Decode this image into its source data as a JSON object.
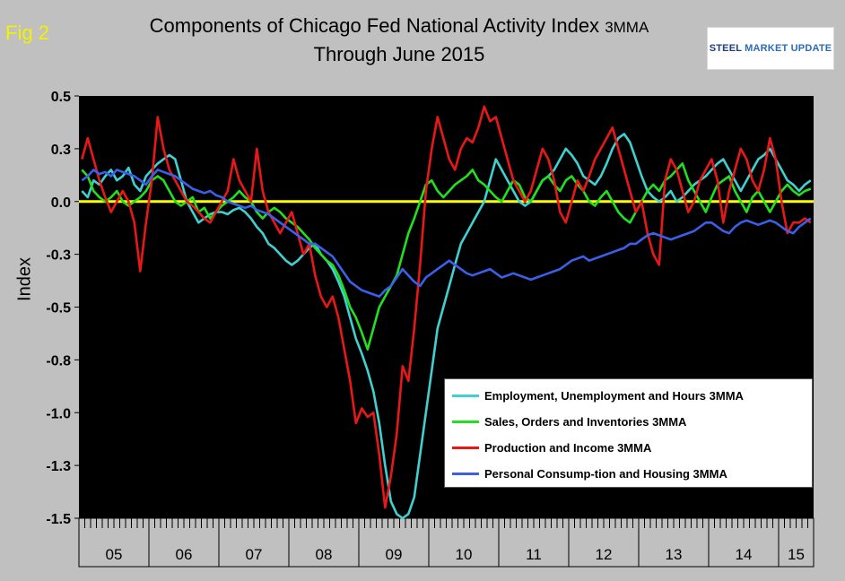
{
  "fig_label": "Fig 2",
  "title": {
    "line1_main": "Components of Chicago Fed National Activity Index",
    "line1_small": "3MMA",
    "line2": "Through June 2015"
  },
  "logo": {
    "part1": "STEEL",
    "part2": "MARKET UPDATE"
  },
  "chart_data": {
    "type": "line",
    "ylabel": "Index",
    "ylim": [
      -1.5,
      0.5
    ],
    "yticks": [
      {
        "value": 0.5,
        "label": "0.5"
      },
      {
        "value": 0.25,
        "label": "0.3"
      },
      {
        "value": 0.0,
        "label": "0.0"
      },
      {
        "value": -0.25,
        "label": "-0.3"
      },
      {
        "value": -0.5,
        "label": "-0.5"
      },
      {
        "value": -0.75,
        "label": "-0.8"
      },
      {
        "value": -1.0,
        "label": "-1.0"
      },
      {
        "value": -1.25,
        "label": "-1.3"
      },
      {
        "value": -1.5,
        "label": "-1.5"
      }
    ],
    "x_start_year": 2005,
    "months": 126,
    "year_labels": [
      "05",
      "06",
      "07",
      "08",
      "09",
      "10",
      "11",
      "12",
      "13",
      "14",
      "15"
    ],
    "zero_line_color": "#ffff00",
    "plot_background": "#000000",
    "series": [
      {
        "name": "Employment, Unemployment and Hours 3MMA",
        "color": "#40d0d0",
        "values": [
          0.05,
          0.02,
          0.1,
          0.08,
          0.12,
          0.15,
          0.1,
          0.12,
          0.16,
          0.08,
          0.05,
          0.12,
          0.15,
          0.18,
          0.2,
          0.22,
          0.2,
          0.1,
          0.0,
          -0.05,
          -0.1,
          -0.08,
          -0.06,
          -0.05,
          -0.05,
          -0.06,
          -0.04,
          -0.03,
          -0.05,
          -0.08,
          -0.12,
          -0.15,
          -0.2,
          -0.22,
          -0.25,
          -0.28,
          -0.3,
          -0.28,
          -0.25,
          -0.22,
          -0.2,
          -0.25,
          -0.28,
          -0.32,
          -0.38,
          -0.45,
          -0.55,
          -0.65,
          -0.72,
          -0.8,
          -0.9,
          -1.05,
          -1.25,
          -1.42,
          -1.48,
          -1.5,
          -1.48,
          -1.4,
          -1.2,
          -1.0,
          -0.8,
          -0.6,
          -0.5,
          -0.4,
          -0.3,
          -0.2,
          -0.15,
          -0.1,
          -0.05,
          0.0,
          0.1,
          0.2,
          0.15,
          0.1,
          0.05,
          0.0,
          -0.02,
          0.0,
          0.05,
          0.1,
          0.12,
          0.15,
          0.2,
          0.25,
          0.22,
          0.18,
          0.12,
          0.1,
          0.08,
          0.12,
          0.18,
          0.25,
          0.3,
          0.32,
          0.28,
          0.2,
          0.12,
          0.05,
          0.02,
          0.0,
          0.02,
          0.05,
          0.0,
          0.02,
          0.05,
          0.08,
          0.1,
          0.12,
          0.15,
          0.18,
          0.2,
          0.15,
          0.1,
          0.05,
          0.1,
          0.15,
          0.2,
          0.22,
          0.25,
          0.2,
          0.15,
          0.1,
          0.08,
          0.05,
          0.08,
          0.1
        ]
      },
      {
        "name": "Sales, Orders and Inventories 3MMA",
        "color": "#20e020",
        "values": [
          0.15,
          0.12,
          0.05,
          0.02,
          0.0,
          0.02,
          0.05,
          0.0,
          -0.02,
          0.0,
          0.02,
          0.05,
          0.1,
          0.12,
          0.1,
          0.05,
          0.0,
          -0.02,
          0.0,
          0.02,
          -0.05,
          -0.03,
          -0.08,
          -0.05,
          -0.02,
          0.0,
          0.02,
          0.05,
          0.02,
          0.0,
          -0.05,
          -0.08,
          -0.05,
          -0.03,
          -0.05,
          -0.08,
          -0.1,
          -0.12,
          -0.15,
          -0.18,
          -0.22,
          -0.25,
          -0.28,
          -0.3,
          -0.35,
          -0.42,
          -0.5,
          -0.55,
          -0.62,
          -0.7,
          -0.6,
          -0.5,
          -0.45,
          -0.4,
          -0.35,
          -0.25,
          -0.15,
          -0.08,
          0.0,
          0.08,
          0.1,
          0.05,
          0.02,
          0.05,
          0.08,
          0.1,
          0.12,
          0.15,
          0.1,
          0.08,
          0.05,
          0.02,
          0.0,
          0.05,
          0.1,
          0.08,
          0.02,
          0.0,
          0.05,
          0.1,
          0.12,
          0.08,
          0.05,
          0.1,
          0.12,
          0.08,
          0.05,
          0.0,
          -0.02,
          0.02,
          0.05,
          0.0,
          -0.05,
          -0.08,
          -0.1,
          -0.05,
          0.0,
          0.05,
          0.08,
          0.05,
          0.1,
          0.12,
          0.15,
          0.18,
          0.1,
          0.05,
          0.0,
          -0.05,
          0.02,
          0.08,
          0.1,
          0.12,
          0.05,
          0.0,
          -0.05,
          0.02,
          0.05,
          0.0,
          -0.05,
          0.0,
          0.05,
          0.08,
          0.05,
          0.03,
          0.05,
          0.06
        ]
      },
      {
        "name": "Production and Income 3MMA",
        "color": "#e81818",
        "values": [
          0.2,
          0.3,
          0.2,
          0.1,
          0.02,
          -0.05,
          0.0,
          0.05,
          0.0,
          -0.1,
          -0.33,
          -0.1,
          0.1,
          0.4,
          0.25,
          0.15,
          0.1,
          0.05,
          0.0,
          -0.02,
          -0.05,
          -0.08,
          -0.1,
          -0.05,
          0.0,
          0.05,
          0.2,
          0.1,
          0.05,
          0.0,
          0.25,
          0.05,
          -0.05,
          -0.1,
          -0.15,
          -0.1,
          -0.05,
          -0.15,
          -0.25,
          -0.2,
          -0.35,
          -0.45,
          -0.5,
          -0.45,
          -0.55,
          -0.7,
          -0.85,
          -1.05,
          -0.98,
          -1.02,
          -1.0,
          -1.2,
          -1.45,
          -1.3,
          -1.1,
          -0.78,
          -0.85,
          -0.6,
          -0.3,
          0.05,
          0.25,
          0.4,
          0.3,
          0.2,
          0.15,
          0.25,
          0.3,
          0.28,
          0.35,
          0.45,
          0.38,
          0.4,
          0.3,
          0.2,
          0.1,
          0.05,
          0.0,
          0.05,
          0.15,
          0.25,
          0.2,
          0.1,
          -0.05,
          -0.1,
          0.0,
          0.1,
          0.05,
          0.12,
          0.2,
          0.25,
          0.3,
          0.35,
          0.25,
          0.15,
          0.05,
          -0.05,
          0.0,
          -0.15,
          -0.25,
          -0.3,
          0.1,
          0.2,
          0.15,
          0.05,
          -0.05,
          0.0,
          0.1,
          0.15,
          0.2,
          0.1,
          -0.1,
          0.05,
          0.15,
          0.25,
          0.2,
          0.1,
          0.05,
          0.15,
          0.3,
          0.2,
          0.0,
          -0.15,
          -0.1,
          -0.1,
          -0.08,
          -0.1
        ]
      },
      {
        "name": "Personal Consump-tion and Housing 3MMA",
        "color": "#3a60e8",
        "values": [
          0.1,
          0.12,
          0.15,
          0.13,
          0.14,
          0.12,
          0.15,
          0.14,
          0.13,
          0.12,
          0.1,
          0.08,
          0.12,
          0.15,
          0.14,
          0.13,
          0.12,
          0.1,
          0.08,
          0.06,
          0.05,
          0.04,
          0.05,
          0.03,
          0.02,
          0.0,
          -0.01,
          -0.02,
          -0.03,
          -0.02,
          -0.04,
          -0.05,
          -0.06,
          -0.08,
          -0.1,
          -0.12,
          -0.14,
          -0.16,
          -0.18,
          -0.2,
          -0.2,
          -0.22,
          -0.24,
          -0.26,
          -0.3,
          -0.34,
          -0.38,
          -0.4,
          -0.42,
          -0.43,
          -0.44,
          -0.45,
          -0.42,
          -0.4,
          -0.36,
          -0.32,
          -0.35,
          -0.38,
          -0.4,
          -0.36,
          -0.34,
          -0.32,
          -0.3,
          -0.28,
          -0.3,
          -0.32,
          -0.34,
          -0.35,
          -0.34,
          -0.33,
          -0.32,
          -0.34,
          -0.36,
          -0.35,
          -0.34,
          -0.35,
          -0.36,
          -0.37,
          -0.36,
          -0.35,
          -0.34,
          -0.33,
          -0.32,
          -0.3,
          -0.28,
          -0.27,
          -0.26,
          -0.28,
          -0.27,
          -0.26,
          -0.25,
          -0.24,
          -0.23,
          -0.22,
          -0.2,
          -0.2,
          -0.18,
          -0.16,
          -0.15,
          -0.16,
          -0.17,
          -0.18,
          -0.17,
          -0.16,
          -0.15,
          -0.14,
          -0.12,
          -0.1,
          -0.1,
          -0.12,
          -0.14,
          -0.15,
          -0.12,
          -0.1,
          -0.09,
          -0.1,
          -0.11,
          -0.1,
          -0.09,
          -0.1,
          -0.12,
          -0.14,
          -0.15,
          -0.12,
          -0.1,
          -0.08
        ]
      }
    ]
  }
}
